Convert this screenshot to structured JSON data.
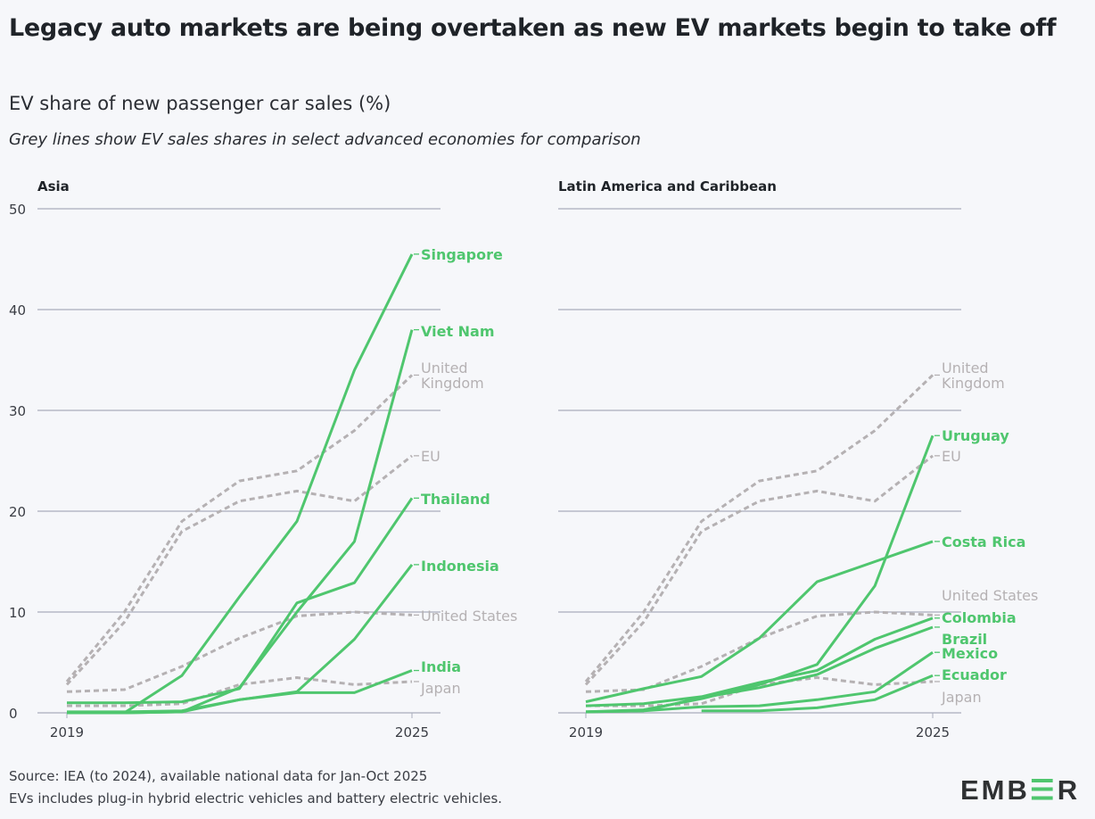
{
  "title": "Legacy auto markets are being overtaken as new EV markets begin to take off",
  "subtitle": "EV share of new passenger car sales (%)",
  "note": "Grey lines show EV sales shares in select advanced economies for comparison",
  "source_lines": [
    "Source: IEA (to 2024), available national data for Jan-Oct 2025",
    "EVs includes plug-in hybrid electric vehicles and battery electric vehicles."
  ],
  "logo": "EMBER",
  "colors": {
    "highlight": "#4fc66e",
    "comparison": "#b5b1b3",
    "grid": "#a9adbc",
    "axis_text": "#3a3d44"
  },
  "chart_data": [
    {
      "type": "line",
      "title": "Asia",
      "x": [
        2019,
        2020,
        2021,
        2022,
        2023,
        2024,
        2025
      ],
      "xticks": [
        "2019",
        "2025"
      ],
      "yticks": [
        "0",
        "10",
        "20",
        "30",
        "40",
        "50"
      ],
      "ylim": [
        0,
        50
      ],
      "ylabel": "EV share of new passenger car sales (%)",
      "grid": true,
      "series": [
        {
          "name": "United Kingdom",
          "label": [
            "United",
            "Kingdom"
          ],
          "style": "comparison",
          "values": [
            3.1,
            10,
            19,
            23,
            24,
            28,
            33.5
          ]
        },
        {
          "name": "EU",
          "label": [
            "EU"
          ],
          "style": "comparison",
          "values": [
            2.8,
            9,
            18,
            21,
            22,
            21,
            25.5
          ]
        },
        {
          "name": "United States",
          "label": [
            "United States"
          ],
          "style": "comparison",
          "values": [
            2.1,
            2.3,
            4.6,
            7.4,
            9.6,
            10,
            9.7
          ]
        },
        {
          "name": "Japan",
          "label": [
            "Japan"
          ],
          "style": "comparison",
          "values": [
            0.7,
            0.7,
            0.9,
            2.8,
            3.5,
            2.8,
            3.1
          ]
        },
        {
          "name": "Singapore",
          "label": [
            "Singapore"
          ],
          "style": "highlight",
          "values": [
            0,
            0,
            3.7,
            11.5,
            19,
            34,
            45.5
          ]
        },
        {
          "name": "Viet Nam",
          "label": [
            "Viet Nam"
          ],
          "style": "highlight",
          "values": [
            0,
            0,
            0.1,
            2.5,
            10,
            17,
            38
          ]
        },
        {
          "name": "Thailand",
          "label": [
            "Thailand"
          ],
          "style": "highlight",
          "values": [
            1.0,
            1.0,
            1.1,
            2.4,
            10.9,
            12.9,
            21.3
          ]
        },
        {
          "name": "Indonesia",
          "label": [
            "Indonesia"
          ],
          "style": "highlight",
          "values": [
            0,
            0,
            0.1,
            1.3,
            2.1,
            7.3,
            14.7
          ]
        },
        {
          "name": "India",
          "label": [
            "India"
          ],
          "style": "highlight",
          "values": [
            0.1,
            0.1,
            0.2,
            1.3,
            2.0,
            2.0,
            4.2
          ]
        }
      ]
    },
    {
      "type": "line",
      "title": "Latin America and Caribbean",
      "x": [
        2019,
        2020,
        2021,
        2022,
        2023,
        2024,
        2025
      ],
      "xticks": [
        "2019",
        "2025"
      ],
      "ylim": [
        0,
        50
      ],
      "grid": true,
      "series": [
        {
          "name": "United Kingdom",
          "label": [
            "United",
            "Kingdom"
          ],
          "style": "comparison",
          "values": [
            3.1,
            10,
            19,
            23,
            24,
            28,
            33.5
          ]
        },
        {
          "name": "EU",
          "label": [
            "EU"
          ],
          "style": "comparison",
          "values": [
            2.8,
            9,
            18,
            21,
            22,
            21,
            25.5
          ]
        },
        {
          "name": "United States",
          "label": [
            "United States"
          ],
          "style": "comparison",
          "values": [
            2.1,
            2.3,
            4.6,
            7.4,
            9.6,
            10,
            9.7
          ]
        },
        {
          "name": "Japan",
          "label": [
            "Japan"
          ],
          "style": "comparison",
          "values": [
            0.7,
            0.7,
            0.9,
            2.8,
            3.5,
            2.8,
            3.1
          ]
        },
        {
          "name": "Uruguay",
          "label": [
            "Uruguay"
          ],
          "style": "highlight",
          "values": [
            0.1,
            0.3,
            1.4,
            2.8,
            4.8,
            12.6,
            27.5
          ]
        },
        {
          "name": "Costa Rica",
          "label": [
            "Costa Rica"
          ],
          "style": "highlight",
          "values": [
            1.1,
            2.4,
            3.6,
            7.4,
            13,
            15,
            17
          ]
        },
        {
          "name": "Colombia",
          "label": [
            "Colombia"
          ],
          "style": "highlight",
          "values": [
            0.7,
            0.9,
            1.6,
            3.0,
            4.2,
            7.3,
            9.4
          ]
        },
        {
          "name": "Brazil",
          "label": [
            "Brazil"
          ],
          "style": "highlight",
          "values": [
            0.1,
            0.2,
            1.5,
            2.5,
            3.8,
            6.4,
            8.5
          ]
        },
        {
          "name": "Mexico",
          "label": [
            "Mexico"
          ],
          "style": "highlight",
          "values": [
            0.1,
            0.2,
            0.6,
            0.7,
            1.3,
            2.1,
            6.0
          ]
        },
        {
          "name": "Ecuador",
          "label": [
            "Ecuador"
          ],
          "style": "highlight",
          "values": [
            null,
            null,
            0.2,
            0.2,
            0.5,
            1.3,
            3.7
          ]
        }
      ]
    }
  ]
}
